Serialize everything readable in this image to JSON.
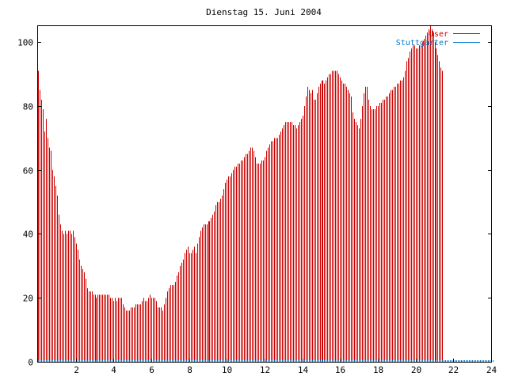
{
  "chart_data": {
    "type": "bar",
    "title": "Dienstag 15. Juni 2004",
    "xlabel": "",
    "ylabel": "",
    "xlim": [
      0,
      24
    ],
    "ylim": [
      0,
      105
    ],
    "x_ticks": [
      "2",
      "4",
      "6",
      "8",
      "10",
      "12",
      "14",
      "16",
      "18",
      "20",
      "22",
      "24"
    ],
    "y_ticks": [
      "0",
      "20",
      "40",
      "60",
      "80",
      "100"
    ],
    "legend_position": "top-right",
    "grid": false,
    "interval_minutes": 5,
    "series": [
      {
        "name": "User",
        "color": "#cc0000",
        "values": [
          91,
          85,
          82,
          79,
          72,
          76,
          70,
          67,
          66,
          60,
          58,
          55,
          52,
          46,
          43,
          41,
          40,
          41,
          40,
          41,
          41,
          40,
          41,
          39,
          37,
          35,
          32,
          30,
          29,
          28,
          26,
          23,
          22,
          22,
          22,
          21,
          21,
          20,
          21,
          21,
          21,
          21,
          21,
          21,
          21,
          21,
          20,
          20,
          19,
          20,
          19,
          20,
          20,
          20,
          18,
          17,
          16,
          16,
          16,
          17,
          17,
          17,
          18,
          18,
          18,
          18,
          19,
          20,
          19,
          19,
          20,
          21,
          20,
          20,
          20,
          19,
          17,
          17,
          17,
          16,
          18,
          20,
          22,
          23,
          24,
          24,
          24,
          25,
          27,
          28,
          30,
          31,
          32,
          34,
          35,
          36,
          34,
          34,
          35,
          36,
          34,
          37,
          39,
          41,
          42,
          43,
          43,
          43,
          44,
          44,
          45,
          46,
          47,
          49,
          50,
          50,
          51,
          52,
          54,
          56,
          57,
          58,
          58,
          59,
          60,
          61,
          61,
          62,
          62,
          63,
          63,
          64,
          65,
          65,
          66,
          67,
          67,
          66,
          64,
          62,
          62,
          62,
          63,
          63,
          64,
          66,
          67,
          68,
          69,
          69,
          70,
          70,
          70,
          71,
          72,
          73,
          74,
          75,
          75,
          75,
          75,
          75,
          74,
          74,
          73,
          74,
          75,
          76,
          77,
          80,
          83,
          86,
          85,
          84,
          85,
          82,
          82,
          84,
          86,
          87,
          88,
          88,
          87,
          88,
          89,
          90,
          90,
          91,
          91,
          91,
          91,
          90,
          89,
          88,
          87,
          87,
          86,
          85,
          84,
          83,
          78,
          76,
          75,
          74,
          73,
          76,
          80,
          84,
          86,
          86,
          82,
          80,
          79,
          79,
          79,
          80,
          80,
          81,
          81,
          82,
          82,
          83,
          83,
          84,
          85,
          85,
          86,
          86,
          87,
          87,
          88,
          88,
          89,
          91,
          94,
          95,
          97,
          98,
          99,
          99,
          98,
          98,
          99,
          99,
          100,
          101,
          102,
          103,
          104,
          105,
          104,
          103,
          100,
          98,
          96,
          94,
          92,
          91
        ]
      },
      {
        "name": "Stuttgarter",
        "color": "#0077cc",
        "values": [
          0.5,
          0.5,
          0.5,
          0.5,
          0.5,
          0.5,
          0.5,
          0.5,
          0.5,
          0.5,
          0.5,
          0.5,
          0.5,
          0.5,
          0.5,
          0.5,
          0.5,
          0.5,
          0.5,
          0.5,
          0.5,
          0.5,
          0.5,
          0.5,
          0.5,
          0.5,
          0.5,
          0.5,
          0.5,
          0.5,
          0.5,
          0.5,
          0.5,
          0.5,
          0.5,
          0.5,
          0.5,
          0.5,
          0.5,
          0.5,
          0.5,
          0.5,
          0.5,
          0.5,
          0.5,
          0.5,
          0.5,
          0.5,
          0.5,
          0.5,
          0.5,
          0.5,
          0.5,
          0.5,
          0.5,
          0.5,
          0.5,
          0.5,
          0.5,
          0.5,
          0.5,
          0.5,
          0.5,
          0.5,
          0.5,
          0.5,
          0.5,
          0.5,
          0.5,
          0.5,
          0.5,
          0.5,
          0.5,
          0.5,
          0.5,
          0.5,
          0.5,
          0.5,
          0.5,
          0.5,
          0.5,
          0.5,
          0.5,
          0.5,
          0.5,
          0.5,
          0.5,
          0.5,
          0.5,
          0.5,
          0.5,
          0.5,
          0.5,
          0.5,
          0.5,
          0.5,
          0.5,
          0.5,
          0.5,
          0.5,
          0.5,
          0.5,
          0.5,
          0.5,
          0.5,
          0.5,
          0.5,
          0.5,
          0.5,
          0.5,
          0.5,
          0.5,
          0.5,
          0.5,
          0.5,
          0.5,
          0.5,
          0.5,
          0.5,
          0.5,
          0.5,
          0.5,
          0.5,
          0.5,
          0.5,
          0.5,
          0.5,
          0.5,
          0.5,
          0.5,
          0.5,
          0.5,
          0.5,
          0.5,
          0.5,
          0.5,
          0.5,
          0.5,
          0.5,
          0.5,
          0.5,
          0.5,
          0.5,
          0.5,
          0.5,
          0.5,
          0.5,
          0.5,
          0.5,
          0.5,
          0.5,
          0.5,
          0.5,
          0.5,
          0.5,
          0.5,
          0.5,
          0.5,
          0.5,
          0.5,
          0.5,
          0.5,
          0.5,
          0.5,
          0.5,
          0.5,
          0.5,
          0.5,
          0.5,
          0.5,
          0.5,
          0.5,
          0.5,
          0.5,
          0.5,
          0.5,
          0.5,
          0.5,
          0.5,
          0.5,
          0.5,
          0.5,
          0.5,
          0.5,
          0.5,
          0.5,
          0.5,
          0.5,
          0.5,
          0.5,
          0.5,
          0.5,
          0.5,
          0.5,
          0.5,
          0.5,
          0.5,
          0.5,
          0.5,
          0.5,
          0.5,
          0.5,
          0.5,
          0.5,
          0.5,
          0.5,
          0.5,
          0.5,
          0.5,
          0.5,
          0.5,
          0.5,
          0.5,
          0.5,
          0.5,
          0.5,
          0.5,
          0.5,
          0.5,
          0.5,
          0.5,
          0.5,
          0.5,
          0.5,
          0.5,
          0.5,
          0.5,
          0.5,
          0.5,
          0.5,
          0.5,
          0.5,
          0.5,
          0.5,
          0.5,
          0.5,
          0.5,
          0.5,
          0.5,
          0.5,
          0.5,
          0.5,
          0.5,
          0.5,
          0.5,
          0.5,
          0.5,
          0.5,
          0.5,
          0.5,
          0.5,
          0.5,
          0.5,
          0.5,
          0.5,
          0.5,
          0.5,
          0.5,
          0.5,
          0.5,
          0.5,
          0.5,
          0.5,
          0.5,
          0.5,
          0.5,
          0.5,
          0.5,
          0.5,
          0.5,
          0.5,
          0.5,
          0.5,
          0.5,
          0.5,
          0.5,
          0.5,
          0.5,
          0.5,
          0.5,
          0.5,
          0.5,
          0.5,
          0.5,
          0.5,
          0.5,
          0.5,
          0.5,
          0.5,
          0.5
        ]
      }
    ]
  }
}
